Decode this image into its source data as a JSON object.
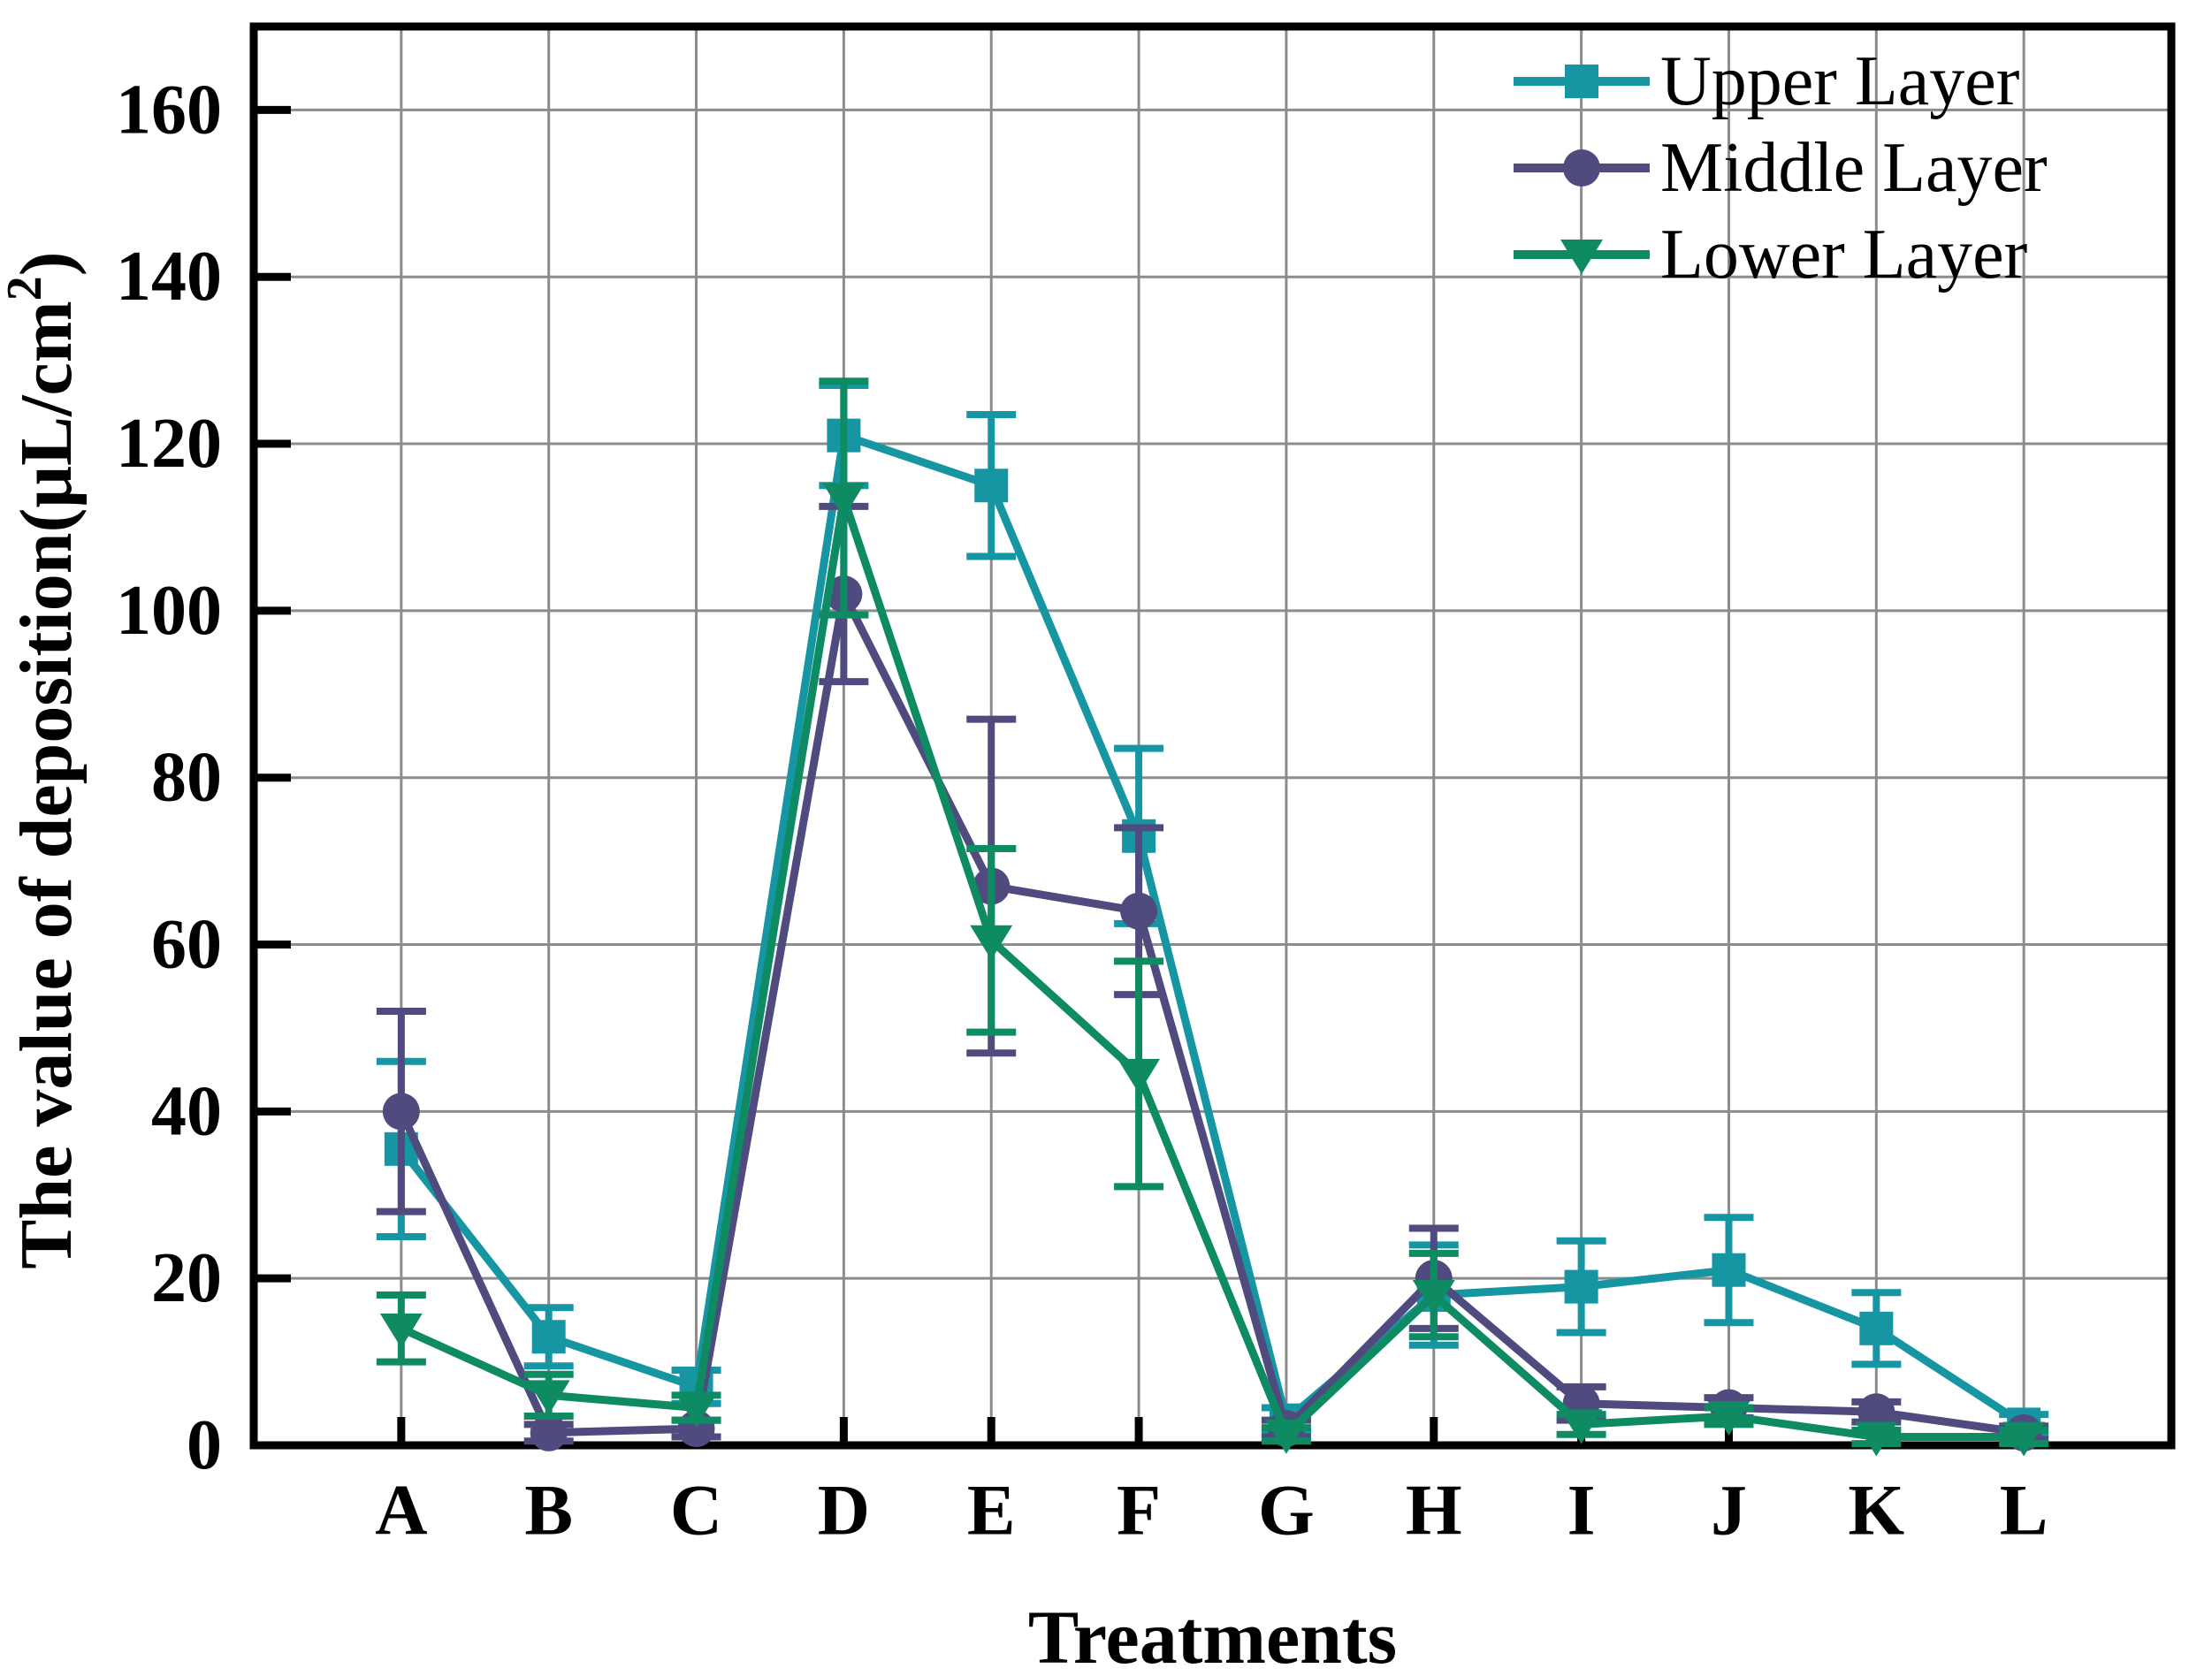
{
  "chart_data": {
    "type": "line",
    "title": "",
    "xlabel": "Treatments",
    "ylabel_main": "The value of deposition(μL/cm",
    "ylabel_sup": "2",
    "ylabel_close": ")",
    "categories": [
      "A",
      "B",
      "C",
      "D",
      "E",
      "F",
      "G",
      "H",
      "I",
      "J",
      "K",
      "L"
    ],
    "yticks": [
      0,
      20,
      40,
      60,
      80,
      100,
      120,
      140,
      160
    ],
    "ylim": [
      0,
      170
    ],
    "grid": true,
    "legend_position": "top-right",
    "legend": [
      {
        "label": "Upper Layer"
      },
      {
        "label": "Middle Layer"
      },
      {
        "label": "Lower Layer"
      }
    ],
    "series": [
      {
        "name": "Upper Layer",
        "marker": "square",
        "color": "#1696A3",
        "values": [
          35.5,
          13,
          7,
          121,
          115,
          73,
          3,
          18,
          19,
          21,
          14,
          2.5
        ],
        "errors": [
          10.5,
          3.5,
          2,
          6,
          8.5,
          10.5,
          1.5,
          6,
          5.5,
          6.3,
          4.3,
          1.2
        ]
      },
      {
        "name": "Middle Layer",
        "marker": "circle",
        "color": "#4F4B7E",
        "values": [
          40,
          1.5,
          2,
          102,
          67,
          64,
          2,
          20,
          5,
          4.5,
          4,
          1.5
        ],
        "errors": [
          12,
          1,
          1,
          10.5,
          20,
          10,
          1,
          6,
          2,
          1.2,
          1.2,
          0.8
        ]
      },
      {
        "name": "Lower Layer",
        "marker": "triangle-down",
        "color": "#0E8B63",
        "values": [
          14,
          6,
          4.5,
          113.5,
          60.5,
          44.5,
          1.3,
          18,
          2.5,
          3.5,
          1,
          1
        ],
        "errors": [
          4,
          2.5,
          1.5,
          14,
          11,
          13.5,
          0.8,
          5,
          1.2,
          1,
          0.8,
          0.8
        ]
      }
    ],
    "colors": {
      "grid": "#8C8C8C",
      "axis": "#000000",
      "background": "#FFFFFF"
    }
  }
}
